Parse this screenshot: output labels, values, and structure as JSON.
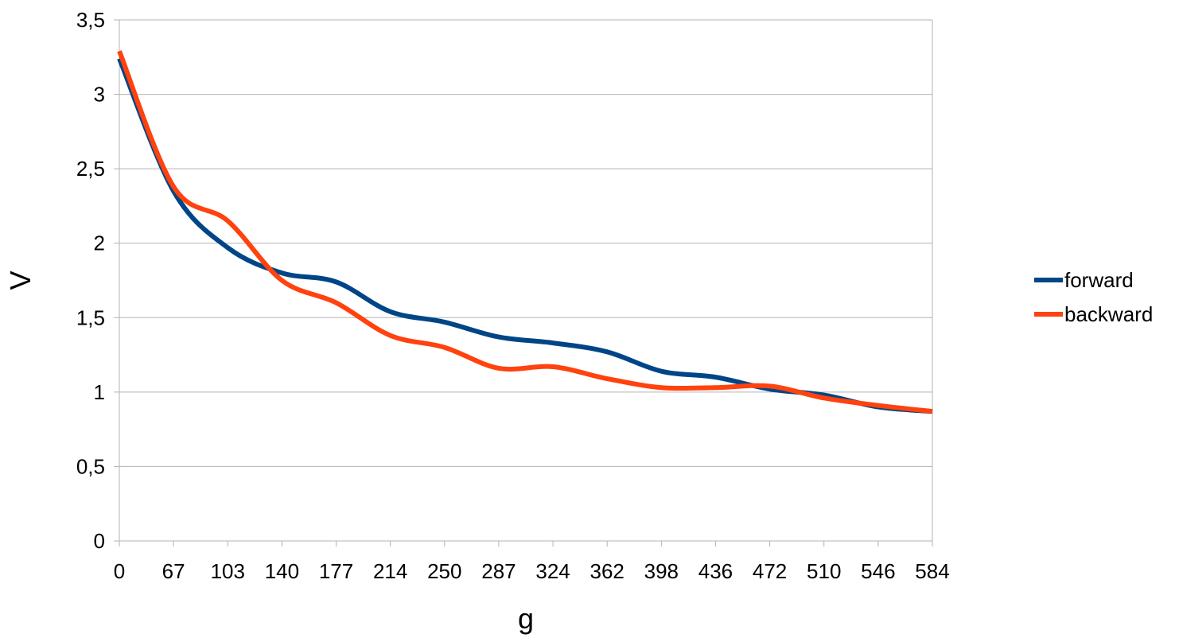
{
  "chart_data": {
    "type": "line",
    "title": "",
    "xlabel": "g",
    "ylabel": "V",
    "x_ticks": [
      "0",
      "67",
      "103",
      "140",
      "177",
      "214",
      "250",
      "287",
      "324",
      "362",
      "398",
      "436",
      "472",
      "510",
      "546",
      "584"
    ],
    "y_ticks": [
      "0",
      "0,5",
      "1",
      "1,5",
      "2",
      "2,5",
      "3",
      "3,5"
    ],
    "ylim": [
      0,
      3.5
    ],
    "grid": "horizontal",
    "legend_position": "right",
    "smooth": true,
    "series": [
      {
        "name": "forward",
        "color": "#004586",
        "values": [
          3.24,
          2.35,
          1.97,
          1.8,
          1.74,
          1.54,
          1.47,
          1.37,
          1.33,
          1.27,
          1.14,
          1.1,
          1.02,
          0.98,
          0.9,
          0.87
        ]
      },
      {
        "name": "backward",
        "color": "#ff420e",
        "values": [
          3.29,
          2.38,
          2.15,
          1.75,
          1.6,
          1.38,
          1.3,
          1.16,
          1.17,
          1.09,
          1.03,
          1.03,
          1.04,
          0.96,
          0.91,
          0.87
        ]
      }
    ]
  }
}
